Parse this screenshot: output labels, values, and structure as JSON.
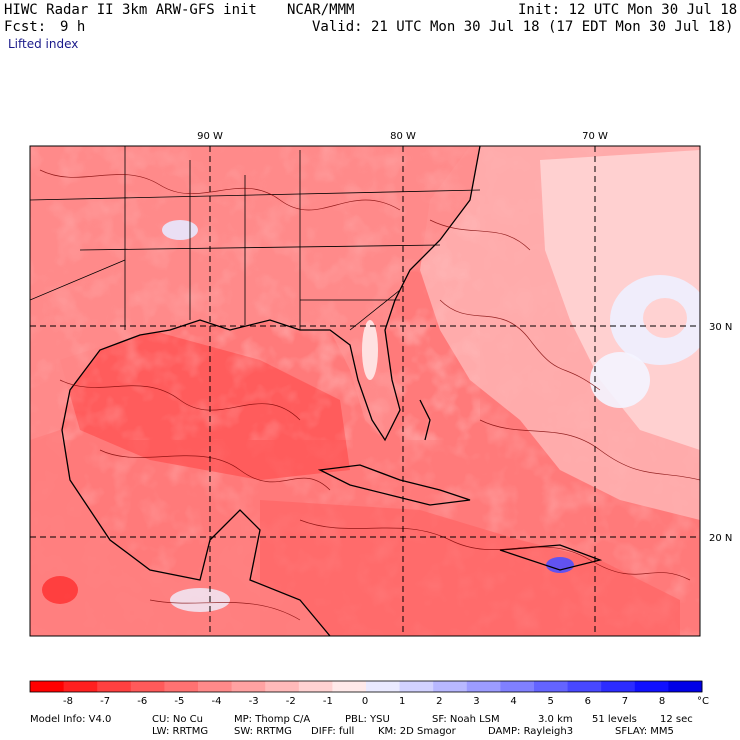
{
  "header": {
    "model_title": "HIWC Radar II 3km ARW-GFS init",
    "org": "NCAR/MMM",
    "init": "Init: 12 UTC Mon 30 Jul 18",
    "fcst_label": "Fcst:",
    "fcst_value": "9 h",
    "valid": "Valid: 21 UTC Mon 30 Jul 18 (17 EDT Mon 30 Jul 18)",
    "field": "Lifted index"
  },
  "map": {
    "lon_labels": [
      "90 W",
      "80 W",
      "70 W"
    ],
    "lat_labels": [
      "30 N",
      "20 N"
    ]
  },
  "colorbar": {
    "tick_labels": [
      "-8",
      "-7",
      "-6",
      "-5",
      "-4",
      "-3",
      "-2",
      "-1",
      "0",
      "1",
      "2",
      "3",
      "4",
      "5",
      "6",
      "7",
      "8"
    ],
    "unit": "°C",
    "colors": [
      "#ff0000",
      "#ff2020",
      "#ff4040",
      "#ff5a5a",
      "#ff7272",
      "#ff8a8a",
      "#ffa2a2",
      "#ffbaba",
      "#ffd2d2",
      "#ffeaea",
      "#eaeaff",
      "#d2d2ff",
      "#b8b8ff",
      "#9c9cff",
      "#8080ff",
      "#6464ff",
      "#4848ff",
      "#2c2cff",
      "#1010ff",
      "#0000e6"
    ]
  },
  "footer": {
    "line1": [
      "Model Info: V4.0",
      "CU: No Cu",
      "MP: Thomp C/A",
      "PBL: YSU",
      "SF: Noah LSM",
      "3.0 km",
      "51 levels",
      "12 sec"
    ],
    "line2": [
      "LW: RRTMG",
      "SW: RRTMG",
      "DIFF: full",
      "KM: 2D Smagor",
      "DAMP: Rayleigh3",
      "SFLAY: MM5"
    ]
  }
}
